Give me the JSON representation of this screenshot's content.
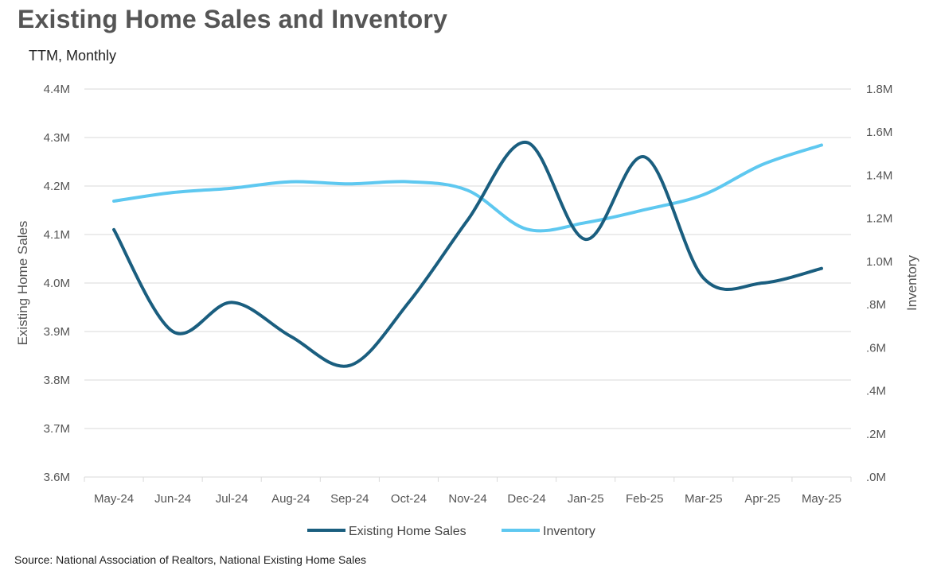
{
  "title": "Existing Home Sales and Inventory",
  "subtitle": "TTM, Monthly",
  "source": "Source: National Association of Realtors, National Existing Home Sales",
  "colors": {
    "sales": "#1a5e7f",
    "inventory": "#5ec8f0",
    "grid": "#d9d9d9",
    "text": "#555555"
  },
  "chart_data": {
    "type": "line",
    "categories": [
      "May-24",
      "Jun-24",
      "Jul-24",
      "Aug-24",
      "Sep-24",
      "Oct-24",
      "Nov-24",
      "Dec-24",
      "Jan-25",
      "Feb-25",
      "Mar-25",
      "Apr-25",
      "May-25"
    ],
    "series": [
      {
        "name": "Existing Home Sales",
        "axis": "left",
        "values": [
          4.11,
          3.9,
          3.96,
          3.89,
          3.83,
          3.96,
          4.13,
          4.29,
          4.09,
          4.26,
          4.01,
          4.0,
          4.03
        ]
      },
      {
        "name": "Inventory",
        "axis": "right",
        "values": [
          1.28,
          1.32,
          1.34,
          1.37,
          1.36,
          1.37,
          1.33,
          1.15,
          1.18,
          1.24,
          1.31,
          1.45,
          1.54
        ]
      }
    ],
    "ylabel": "Existing Home Sales",
    "y2label": "Inventory",
    "ylim": [
      3.6,
      4.4
    ],
    "y2lim": [
      0,
      1.8
    ],
    "ytick_labels": [
      "3.6M",
      "3.7M",
      "3.8M",
      "3.9M",
      "4.0M",
      "4.1M",
      "4.2M",
      "4.3M",
      "4.4M"
    ],
    "y2tick_labels": [
      ".0M",
      ".2M",
      ".4M",
      ".6M",
      ".8M",
      "1.0M",
      "1.2M",
      "1.4M",
      "1.6M",
      "1.8M"
    ],
    "grid": true,
    "legend_position": "bottom"
  }
}
